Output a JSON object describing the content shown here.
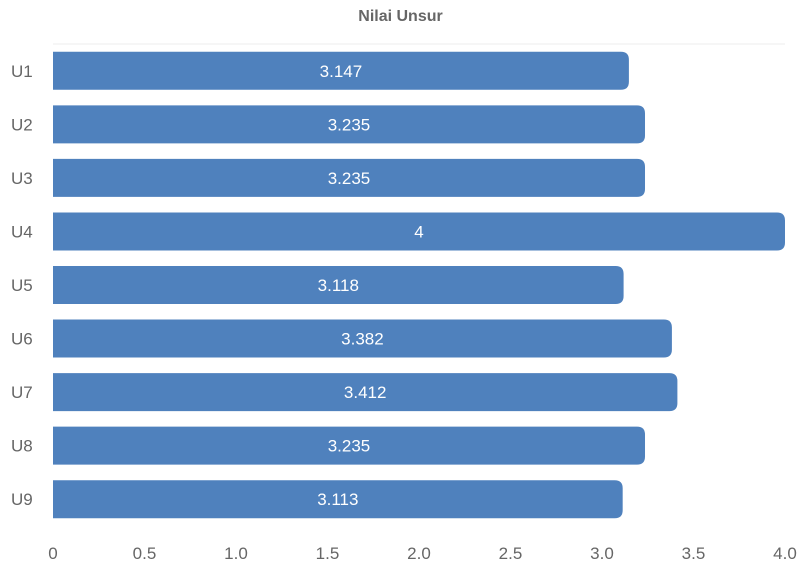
{
  "chart_data": {
    "type": "bar",
    "orientation": "horizontal",
    "title": "Nilai Unsur",
    "xlabel": "",
    "ylabel": "",
    "categories": [
      "U1",
      "U2",
      "U3",
      "U4",
      "U5",
      "U6",
      "U7",
      "U8",
      "U9"
    ],
    "values": [
      3.147,
      3.235,
      3.235,
      4,
      3.118,
      3.382,
      3.412,
      3.235,
      3.113
    ],
    "data_labels": [
      "3.147",
      "3.235",
      "3.235",
      "4",
      "3.118",
      "3.382",
      "3.412",
      "3.235",
      "3.113"
    ],
    "xlim": [
      0,
      4
    ],
    "xticks": [
      0,
      0.5,
      1,
      1.5,
      2,
      2.5,
      3,
      3.5,
      4
    ],
    "xtick_labels": [
      "0",
      "0.5",
      "1.0",
      "1.5",
      "2.0",
      "2.5",
      "3.0",
      "3.5",
      "4.0"
    ],
    "bar_color": "#4f81bd",
    "grid": false,
    "legend": "none"
  }
}
